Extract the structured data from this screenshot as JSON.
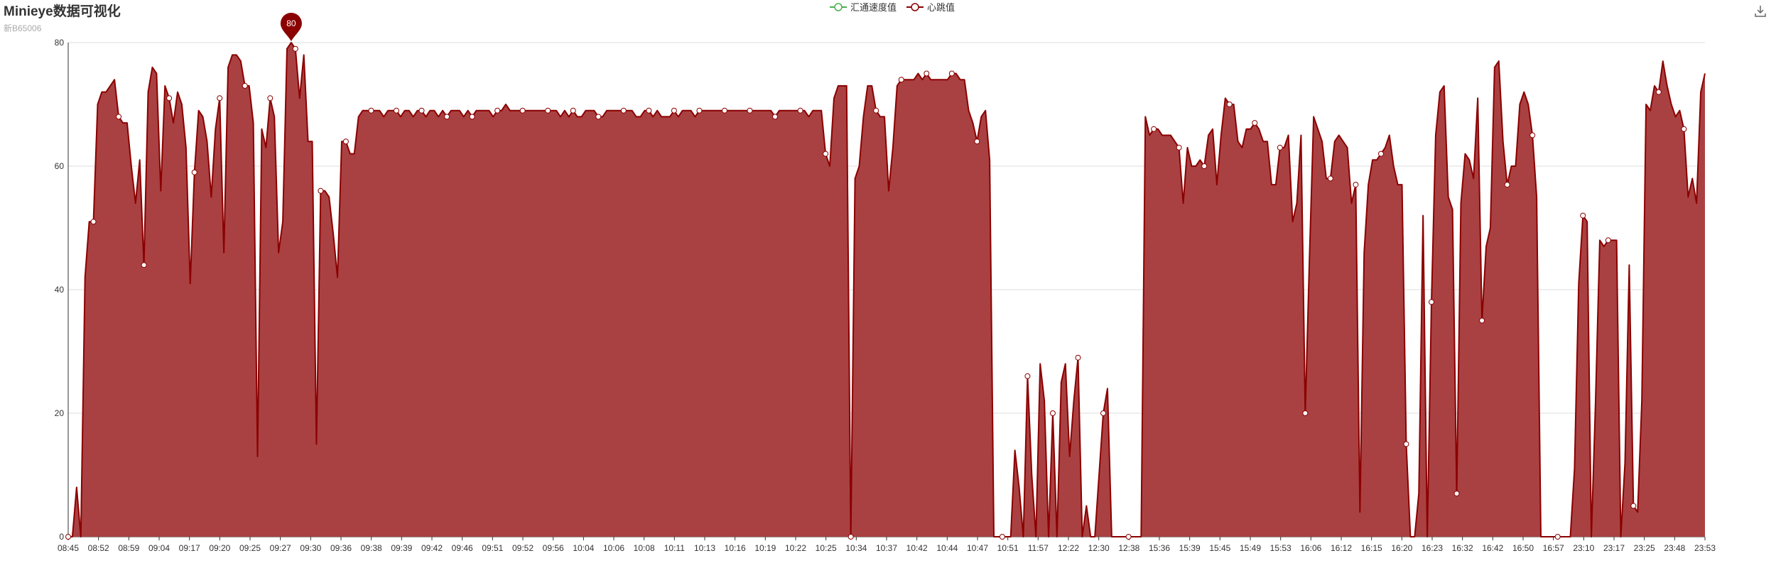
{
  "header": {
    "title": "Minieye数据可视化",
    "subtitle": "新B65006"
  },
  "toolbar": {
    "download_icon": "download-icon"
  },
  "colors": {
    "area": "#a94142",
    "line": "#8b0000",
    "grid": "#dddddd",
    "axis": "#333333",
    "speed_legend": "#4caf50",
    "marker": "#8b0000"
  },
  "chart_data": {
    "type": "area",
    "ylim": [
      0,
      80
    ],
    "yticks": [
      0,
      20,
      40,
      60,
      80
    ],
    "grid": true,
    "legend_position": "top-center",
    "legend": [
      "汇通速度值",
      "心跳值"
    ],
    "x_tick_labels": [
      "08:45",
      "08:52",
      "08:59",
      "09:04",
      "09:17",
      "09:20",
      "09:25",
      "09:27",
      "09:30",
      "09:36",
      "09:38",
      "09:39",
      "09:42",
      "09:46",
      "09:51",
      "09:52",
      "09:56",
      "10:04",
      "10:06",
      "10:08",
      "10:11",
      "10:13",
      "10:16",
      "10:19",
      "10:22",
      "10:25",
      "10:34",
      "10:37",
      "10:42",
      "10:44",
      "10:47",
      "10:51",
      "11:57",
      "12:22",
      "12:30",
      "12:38",
      "15:36",
      "15:39",
      "15:45",
      "15:49",
      "15:53",
      "16:06",
      "16:12",
      "16:15",
      "16:20",
      "16:23",
      "16:32",
      "16:42",
      "16:50",
      "16:57",
      "23:10",
      "23:17",
      "23:25",
      "23:48",
      "23:53"
    ],
    "max_marker": {
      "label": "80",
      "value": 80
    },
    "series": [
      {
        "name": "汇通速度值",
        "values": []
      },
      {
        "name": "心跳值",
        "values": [
          0,
          0,
          8,
          0,
          42,
          51,
          51,
          70,
          72,
          72,
          73,
          74,
          68,
          67,
          67,
          60,
          54,
          61,
          44,
          72,
          76,
          75,
          56,
          73,
          71,
          67,
          72,
          70,
          63,
          41,
          59,
          69,
          68,
          64,
          55,
          66,
          71,
          46,
          76,
          78,
          78,
          77,
          73,
          73,
          67,
          13,
          66,
          63,
          71,
          68,
          46,
          51,
          79,
          80,
          79,
          71,
          78,
          64,
          64,
          15,
          56,
          56,
          55,
          49,
          42,
          64,
          64,
          62,
          62,
          68,
          69,
          69,
          69,
          69,
          69,
          68,
          69,
          69,
          69,
          68,
          69,
          69,
          68,
          69,
          69,
          68,
          69,
          69,
          68,
          69,
          68,
          69,
          69,
          69,
          68,
          69,
          68,
          69,
          69,
          69,
          69,
          68,
          69,
          69,
          70,
          69,
          69,
          69,
          69,
          69,
          69,
          69,
          69,
          69,
          69,
          69,
          69,
          68,
          69,
          68,
          69,
          68,
          68,
          69,
          69,
          69,
          68,
          68,
          69,
          69,
          69,
          69,
          69,
          69,
          69,
          68,
          68,
          69,
          69,
          68,
          69,
          68,
          68,
          68,
          69,
          68,
          69,
          69,
          69,
          68,
          69,
          69,
          69,
          69,
          69,
          69,
          69,
          69,
          69,
          69,
          69,
          69,
          69,
          69,
          69,
          69,
          69,
          69,
          68,
          69,
          69,
          69,
          69,
          69,
          69,
          69,
          68,
          69,
          69,
          69,
          62,
          60,
          71,
          73,
          73,
          73,
          0,
          58,
          60,
          68,
          73,
          73,
          69,
          68,
          68,
          56,
          63,
          73,
          74,
          74,
          74,
          74,
          75,
          74,
          75,
          74,
          74,
          74,
          74,
          74,
          75,
          75,
          74,
          74,
          69,
          67,
          64,
          68,
          69,
          61,
          0,
          0,
          0,
          0,
          0,
          14,
          8,
          0,
          26,
          10,
          0,
          28,
          22,
          0,
          20,
          0,
          25,
          28,
          13,
          22,
          29,
          0,
          5,
          0,
          0,
          10,
          20,
          24,
          0,
          0,
          0,
          0,
          0,
          0,
          0,
          0,
          68,
          65,
          66,
          66,
          65,
          65,
          65,
          64,
          63,
          54,
          63,
          60,
          60,
          61,
          60,
          65,
          66,
          57,
          65,
          71,
          70,
          70,
          64,
          63,
          66,
          66,
          67,
          66,
          64,
          64,
          57,
          57,
          63,
          63,
          65,
          51,
          54,
          65,
          20,
          45,
          68,
          66,
          64,
          58,
          58,
          64,
          65,
          64,
          63,
          54,
          57,
          4,
          46,
          57,
          61,
          61,
          62,
          63,
          65,
          60,
          57,
          57,
          15,
          0,
          0,
          7,
          52,
          0,
          38,
          65,
          72,
          73,
          55,
          53,
          7,
          54,
          62,
          61,
          58,
          71,
          35,
          47,
          50,
          76,
          77,
          64,
          57,
          60,
          60,
          70,
          72,
          70,
          65,
          55,
          0,
          0,
          0,
          0,
          0,
          0,
          0,
          0,
          11,
          41,
          52,
          51,
          0,
          22,
          48,
          47,
          48,
          48,
          48,
          0,
          12,
          44,
          5,
          4,
          22,
          70,
          69,
          73,
          72,
          77,
          73,
          70,
          68,
          69,
          66,
          55,
          58,
          54,
          72,
          75
        ]
      }
    ]
  }
}
